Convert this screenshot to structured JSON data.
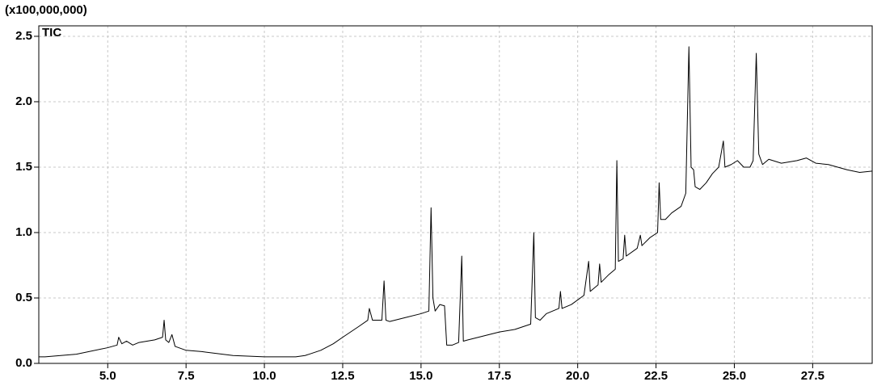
{
  "chart_data": {
    "type": "line",
    "title": "(x100,000,000)",
    "annotation": "TIC",
    "grid": true,
    "xlim": [
      2.8,
      29.4
    ],
    "ylim": [
      0,
      2.58
    ],
    "xticks": [
      {
        "value": 5,
        "label": "5.0"
      },
      7.5,
      {
        "value": 10,
        "label": "10.0"
      },
      12.5,
      {
        "value": 15,
        "label": "15.0"
      },
      17.5,
      {
        "value": 20,
        "label": "20.0"
      },
      22.5,
      {
        "value": 25,
        "label": "25.0"
      },
      27.5
    ],
    "yticks": [
      {
        "value": 0,
        "label": "0.0"
      },
      0.5,
      {
        "value": 1,
        "label": "1.0"
      },
      1.5,
      {
        "value": 2,
        "label": "2.0"
      },
      2.5
    ],
    "series": [
      {
        "name": "TIC",
        "color": "#000000",
        "x": [
          2.8,
          3.0,
          4.0,
          5.0,
          5.3,
          5.35,
          5.45,
          5.6,
          5.8,
          6.0,
          6.5,
          6.75,
          6.8,
          6.85,
          6.95,
          7.05,
          7.15,
          7.5,
          8.0,
          9.0,
          10.0,
          11.0,
          11.3,
          11.8,
          12.2,
          12.5,
          13.0,
          13.3,
          13.35,
          13.45,
          13.75,
          13.82,
          13.88,
          14.0,
          14.5,
          15.0,
          15.25,
          15.32,
          15.38,
          15.45,
          15.6,
          15.75,
          15.82,
          16.0,
          16.2,
          16.3,
          16.35,
          16.5,
          17.0,
          17.5,
          18.0,
          18.5,
          18.6,
          18.65,
          18.8,
          19.0,
          19.4,
          19.45,
          19.5,
          19.8,
          20.2,
          20.35,
          20.4,
          20.65,
          20.7,
          20.75,
          21.0,
          21.2,
          21.25,
          21.3,
          21.45,
          21.5,
          21.55,
          21.9,
          22.0,
          22.05,
          22.3,
          22.55,
          22.6,
          22.65,
          22.8,
          23.0,
          23.3,
          23.45,
          23.55,
          23.62,
          23.7,
          23.75,
          23.9,
          24.1,
          24.3,
          24.5,
          24.65,
          24.7,
          24.9,
          25.1,
          25.3,
          25.5,
          25.6,
          25.7,
          25.78,
          25.9,
          26.1,
          26.5,
          27.0,
          27.3,
          27.6,
          28.0,
          28.3,
          28.6,
          29.0,
          29.4
        ],
        "values": [
          0.05,
          0.05,
          0.07,
          0.12,
          0.14,
          0.2,
          0.15,
          0.17,
          0.14,
          0.16,
          0.18,
          0.2,
          0.33,
          0.18,
          0.16,
          0.22,
          0.13,
          0.1,
          0.09,
          0.06,
          0.05,
          0.05,
          0.06,
          0.1,
          0.15,
          0.2,
          0.28,
          0.33,
          0.42,
          0.33,
          0.33,
          0.63,
          0.33,
          0.32,
          0.35,
          0.38,
          0.4,
          1.19,
          0.5,
          0.4,
          0.45,
          0.44,
          0.14,
          0.14,
          0.16,
          0.82,
          0.17,
          0.18,
          0.21,
          0.24,
          0.26,
          0.3,
          1.0,
          0.35,
          0.33,
          0.38,
          0.42,
          0.55,
          0.42,
          0.45,
          0.52,
          0.78,
          0.55,
          0.6,
          0.76,
          0.62,
          0.68,
          0.72,
          1.55,
          0.78,
          0.8,
          0.98,
          0.82,
          0.88,
          0.98,
          0.9,
          0.96,
          1.0,
          1.38,
          1.1,
          1.1,
          1.15,
          1.2,
          1.3,
          2.42,
          1.5,
          1.48,
          1.35,
          1.33,
          1.38,
          1.45,
          1.5,
          1.7,
          1.5,
          1.52,
          1.55,
          1.5,
          1.5,
          1.55,
          2.37,
          1.6,
          1.52,
          1.56,
          1.53,
          1.55,
          1.57,
          1.53,
          1.52,
          1.5,
          1.48,
          1.46,
          1.47
        ]
      }
    ]
  }
}
